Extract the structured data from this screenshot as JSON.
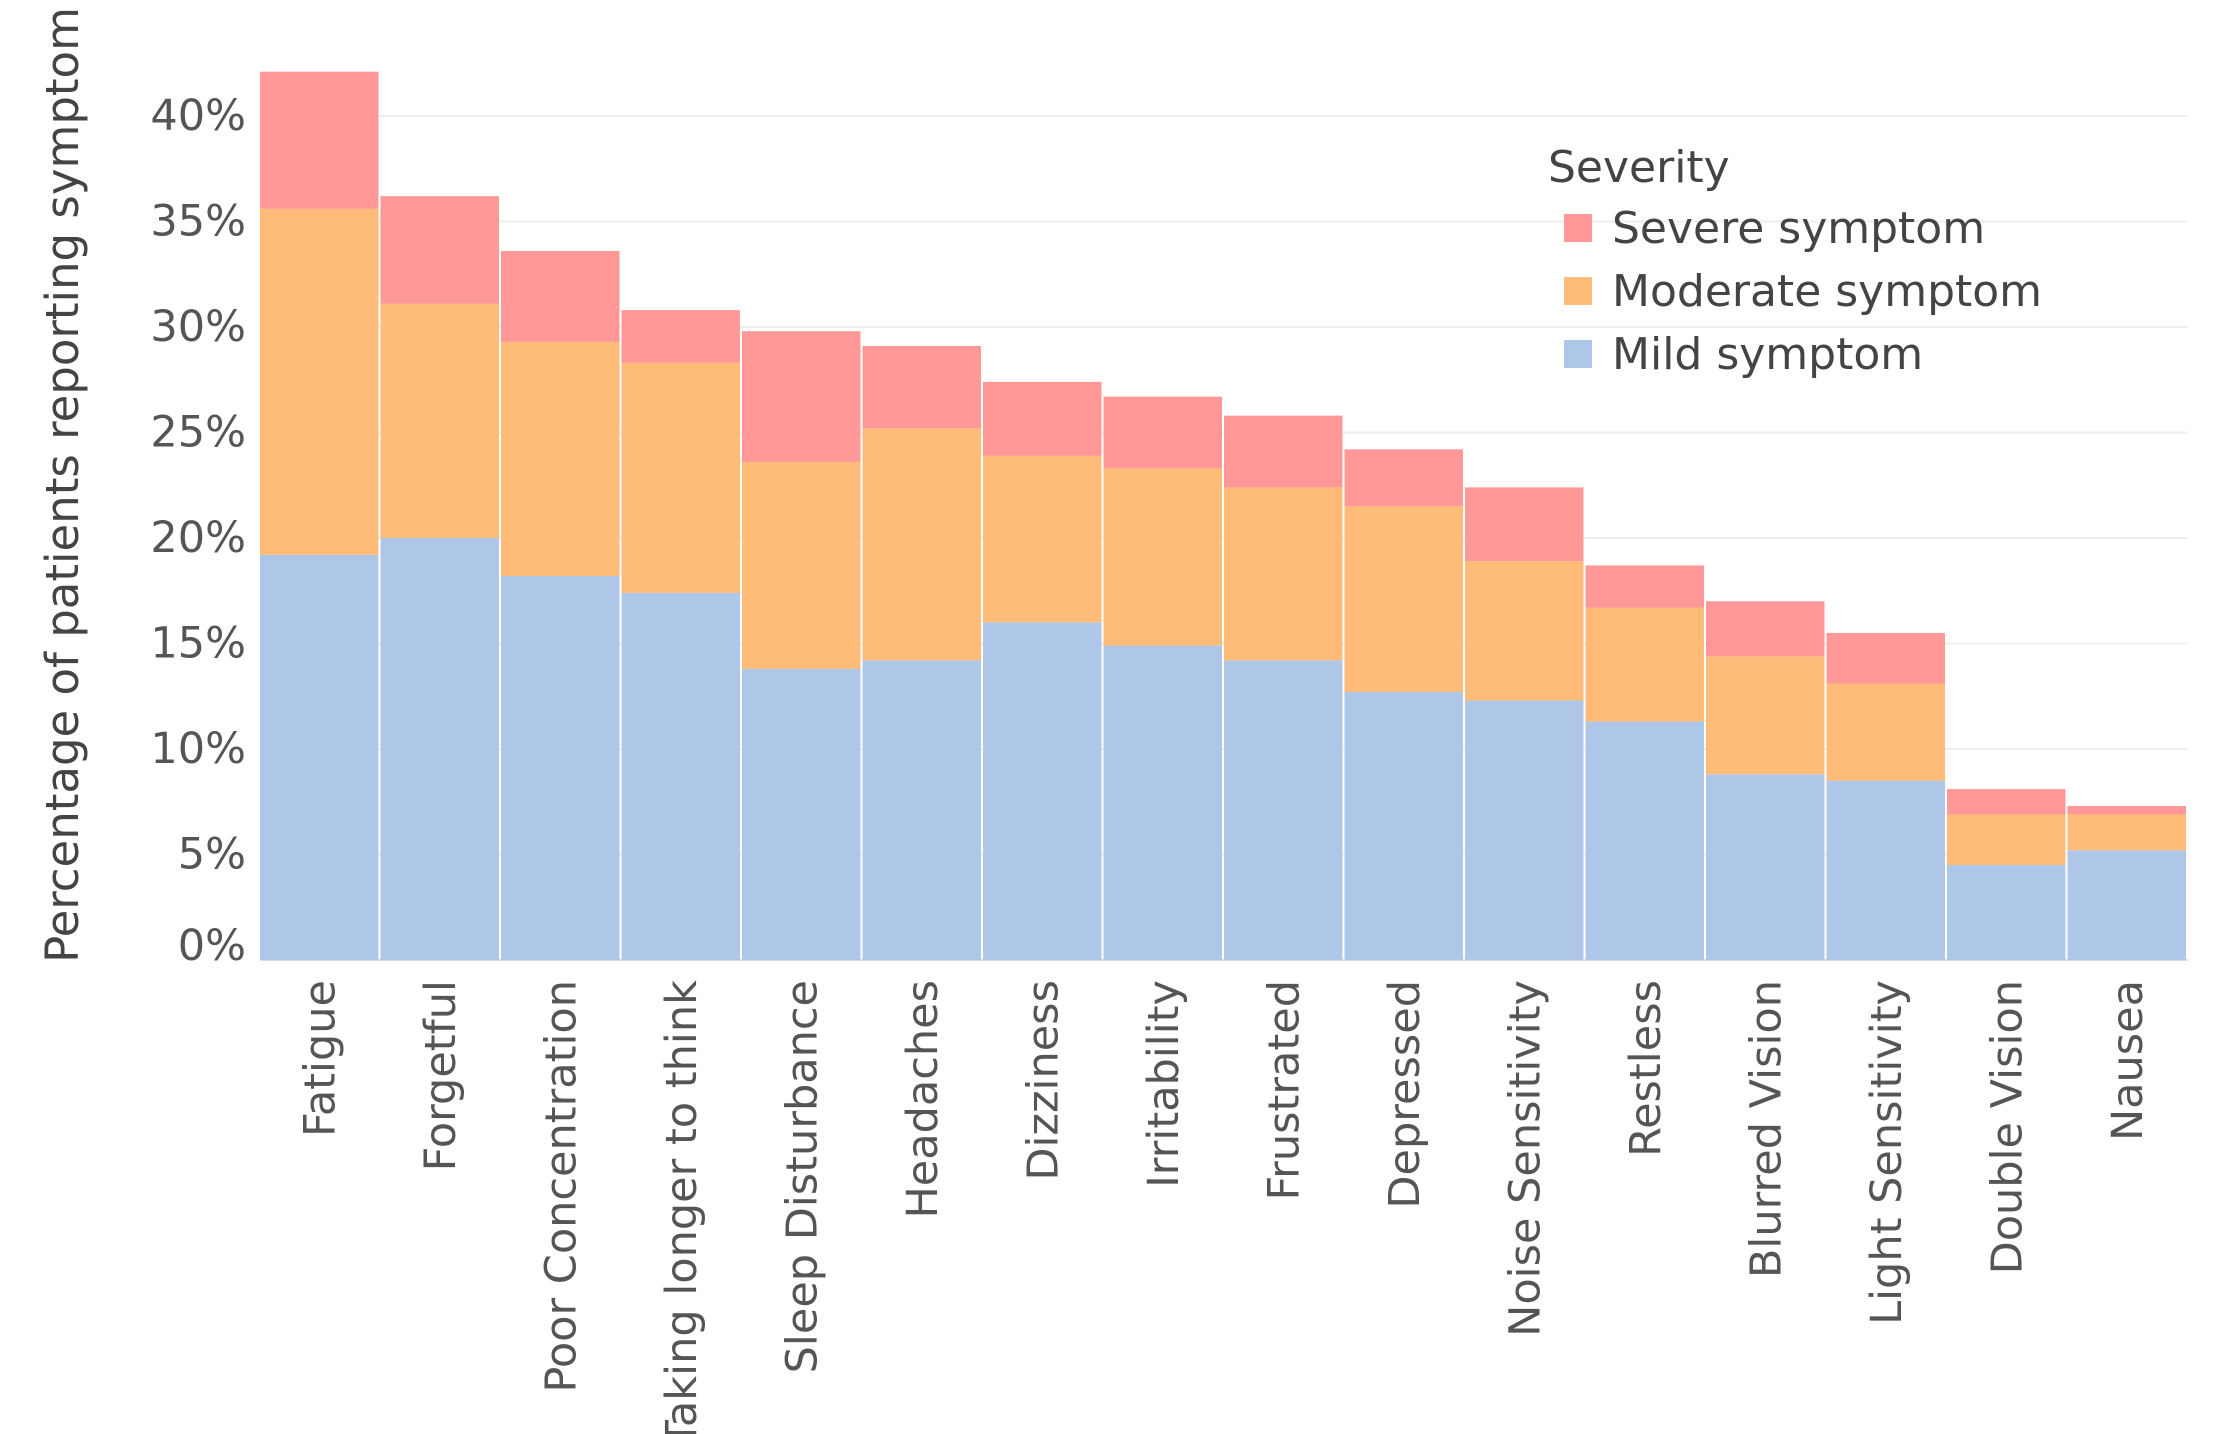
{
  "chart_data": {
    "type": "bar",
    "stacked": true,
    "title": "",
    "xlabel": "",
    "ylabel": "Percentage of patients reporting symptom",
    "ylim": [
      0,
      42
    ],
    "yticks": [
      0,
      5,
      10,
      15,
      20,
      25,
      30,
      35,
      40
    ],
    "ytick_labels": [
      "0%",
      "5%",
      "10%",
      "15%",
      "20%",
      "25%",
      "30%",
      "35%",
      "40%"
    ],
    "grid": true,
    "legend_placement": "top-right",
    "categories": [
      "Fatigue",
      "Forgetful",
      "Poor Concentration",
      "Taking longer to think",
      "Sleep Disturbance",
      "Headaches",
      "Dizziness",
      "Irritability",
      "Frustrated",
      "Depressed",
      "Noise Sensitivity",
      "Restless",
      "Blurred Vision",
      "Light Sensitivity",
      "Double Vision",
      "Nausea"
    ],
    "series": [
      {
        "name": "Mild symptom",
        "color": "#aec7e8",
        "values": [
          19.2,
          20.0,
          18.2,
          17.4,
          13.8,
          14.2,
          16.0,
          14.9,
          14.2,
          12.7,
          12.3,
          11.3,
          8.8,
          8.5,
          4.5,
          5.2
        ]
      },
      {
        "name": "Moderate symptom",
        "color": "#ffbb78",
        "values": [
          16.4,
          11.1,
          11.1,
          10.9,
          9.8,
          11.0,
          7.9,
          8.4,
          8.2,
          8.8,
          6.6,
          5.4,
          5.6,
          4.6,
          2.4,
          1.7
        ]
      },
      {
        "name": "Severe symptom",
        "color": "#ff9896",
        "values": [
          6.5,
          5.1,
          4.3,
          2.5,
          6.2,
          3.9,
          3.5,
          3.4,
          3.4,
          2.7,
          3.5,
          2.0,
          2.6,
          2.4,
          1.2,
          0.4
        ]
      }
    ],
    "legend": {
      "title": "Severity",
      "entries": [
        "Severe symptom",
        "Moderate symptom",
        "Mild symptom"
      ]
    }
  }
}
